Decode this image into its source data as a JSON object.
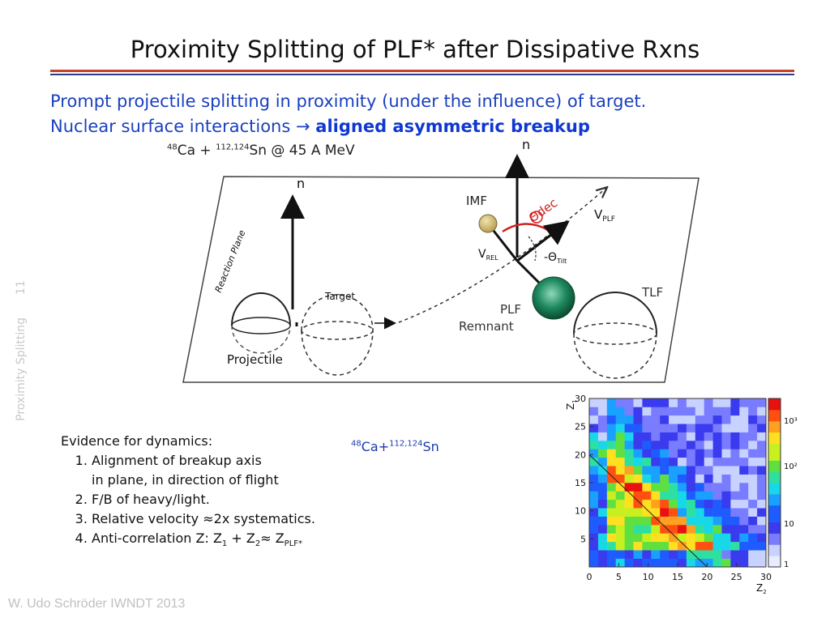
{
  "slide": {
    "title": "Proximity Splitting of PLF* after Dissipative Rxns",
    "intro_line1": "Prompt projectile splitting in proximity (under the influence) of target.",
    "intro_line2_prefix": "Nuclear surface interactions ",
    "intro_arrow": "→",
    "intro_line2_bold": "aligned asymmetric breakup",
    "side_label": "Proximity Splitting",
    "page_number": "11",
    "footer": "W. Udo Schröder IWNDT 2013"
  },
  "diagram": {
    "reaction_sup1": "48",
    "reaction_mid": "Ca + ",
    "reaction_sup2": "112,124",
    "reaction_end": "Sn @ 45 A MeV",
    "n_top": "n",
    "n_left": "n",
    "reaction_plane": "Reaction Plane",
    "target": "Target",
    "projectile": "Projectile",
    "imf": "IMF",
    "theta_dec": "Θdec",
    "v_plf": "V",
    "v_plf_sub": "PLF",
    "v_rel": "V",
    "v_rel_sub": "REL",
    "theta_tilt": "-Θ",
    "theta_tilt_sub": "Tilt",
    "plf": "PLF",
    "remnant": "Remnant",
    "tlf": "TLF"
  },
  "evidence": {
    "heading": "Evidence for dynamics:",
    "item1": "Alignment of breakup axis",
    "item1_cont": "in plane, in direction of flight",
    "item2": "F/B of heavy/light.",
    "item3": "Relative velocity ≈2x systematics.",
    "item4_prefix": "Anti-correlation Z: Z",
    "item4_sub1": "1",
    "item4_plus": " + Z",
    "item4_sub2": "2",
    "item4_approx": "≈ Z",
    "item4_sub3": "PLF*"
  },
  "ca_label": {
    "sup1": "48",
    "mid": "Ca+",
    "sup2": "112,124",
    "end": "Sn"
  },
  "chart_data": {
    "type": "heatmap",
    "xlabel": "Z",
    "xlabel_sub": "2",
    "ylabel": "Z",
    "ylabel_sub": "1",
    "x_ticks": [
      "0",
      "5",
      "10",
      "15",
      "20",
      "25",
      "30"
    ],
    "y_ticks": [
      "5",
      "10",
      "15",
      "20",
      "25",
      "30"
    ],
    "xlim": [
      0,
      30
    ],
    "ylim": [
      0,
      30
    ],
    "scale_ticks": [
      "10³",
      "10²",
      "10",
      "1"
    ],
    "log_scale": true,
    "diagonal_line": {
      "x": [
        0,
        20
      ],
      "y": [
        20,
        0
      ]
    }
  }
}
